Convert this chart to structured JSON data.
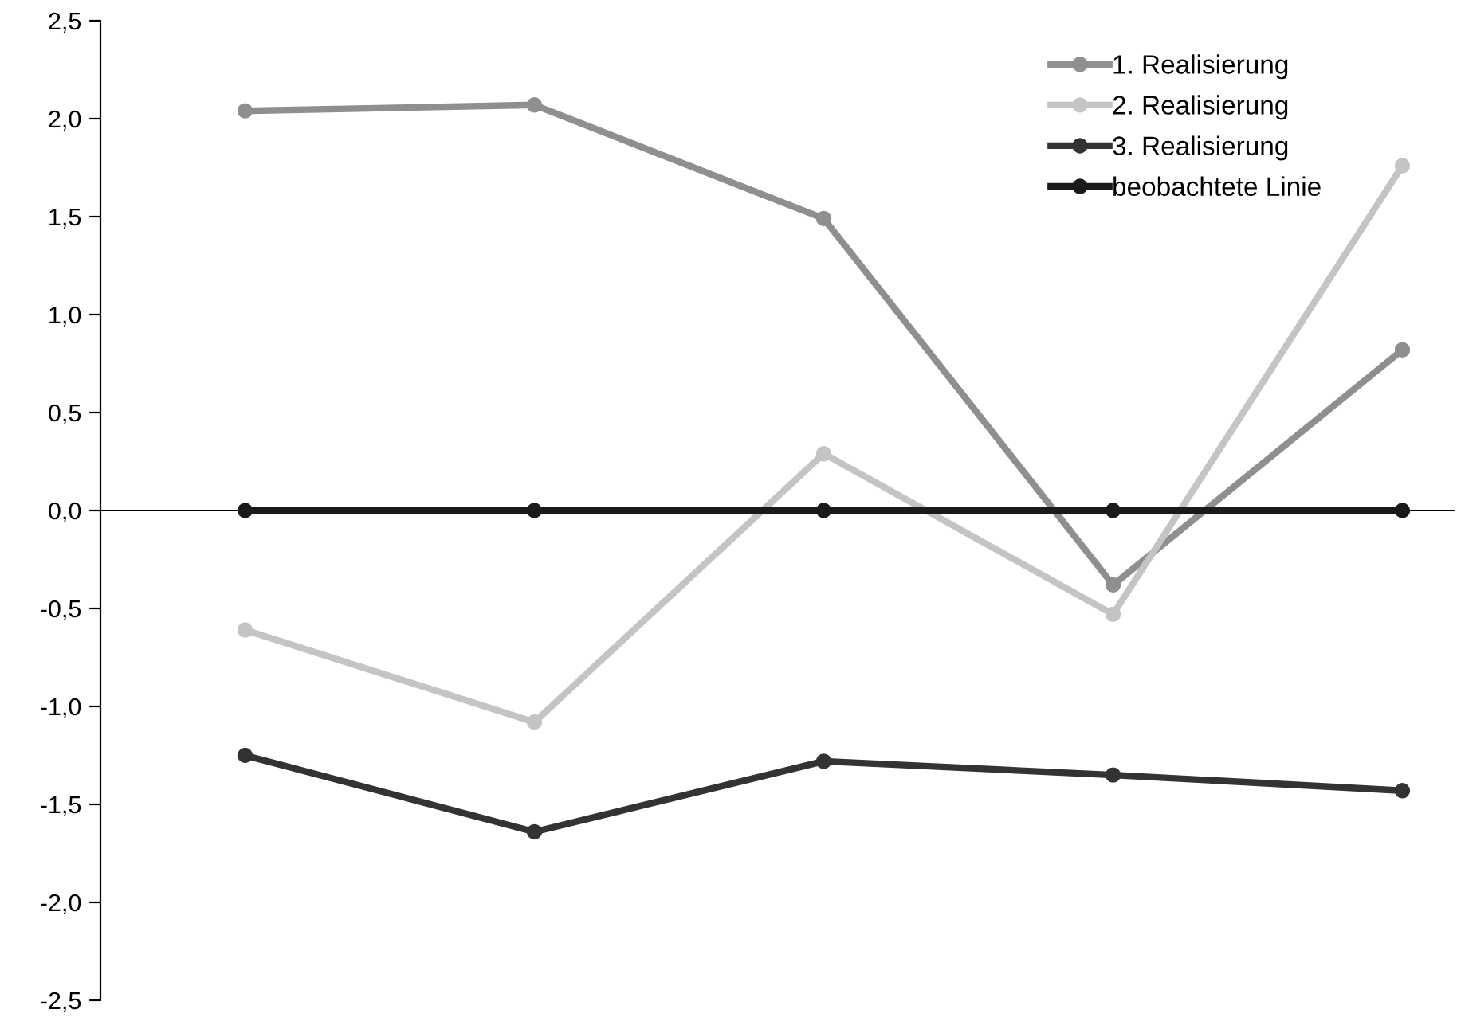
{
  "chart_data": {
    "type": "line",
    "categories": [
      null,
      null,
      null,
      null,
      null
    ],
    "series": [
      {
        "name": "1. Realisierung",
        "color": "#8f8f8f",
        "values": [
          2.04,
          2.07,
          1.49,
          -0.38,
          0.82
        ]
      },
      {
        "name": "2. Realisierung",
        "color": "#c4c4c4",
        "values": [
          -0.61,
          -1.08,
          0.29,
          -0.53,
          1.76
        ]
      },
      {
        "name": "3. Realisierung",
        "color": "#333333",
        "values": [
          -1.25,
          -1.64,
          -1.28,
          -1.35,
          -1.43
        ]
      },
      {
        "name": "beobachtete Linie",
        "color": "#1a1a1a",
        "values": [
          0,
          0,
          0,
          0,
          0
        ]
      }
    ],
    "ylim": [
      -2.5,
      2.5
    ],
    "yticks": [
      {
        "value": -2.5,
        "label": "-2,5"
      },
      {
        "value": -2.0,
        "label": "-2,0"
      },
      {
        "value": -1.5,
        "label": "-1,5"
      },
      {
        "value": -1.0,
        "label": "-1,0"
      },
      {
        "value": -0.5,
        "label": "-0,5"
      },
      {
        "value": 0,
        "label": "0,0"
      },
      {
        "value": 0.5,
        "label": "0,5"
      },
      {
        "value": 1.0,
        "label": "1,0"
      },
      {
        "value": 1.5,
        "label": "1,5"
      },
      {
        "value": 2.0,
        "label": "2,0"
      },
      {
        "value": 2.5,
        "label": "2,5"
      }
    ],
    "tick_labels": "y",
    "marker": "circle",
    "line_style": "solid",
    "legend": "top right"
  }
}
